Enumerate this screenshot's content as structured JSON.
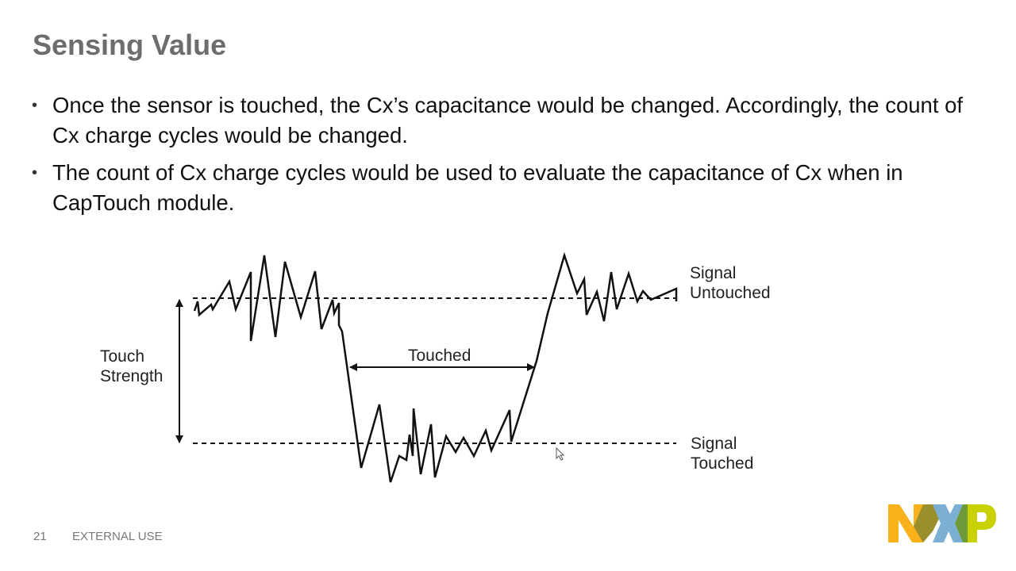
{
  "slide": {
    "title": "Sensing Value",
    "bullets": [
      "Once the sensor is touched, the Cx’s capacitance would be changed. Accordingly, the count of Cx charge cycles would be changed.",
      "The count of Cx charge cycles would be used to evaluate the capacitance of Cx when in CapTouch module."
    ]
  },
  "diagram": {
    "touch_strength_label": [
      "Touch",
      "Strength"
    ],
    "touched_label": "Touched",
    "signal_untouched_label": [
      "Signal",
      "Untouched"
    ],
    "signal_touched_label": [
      "Signal",
      "Touched"
    ]
  },
  "footer": {
    "page_number": "21",
    "classification": "EXTERNAL USE",
    "logo_text": "NXP"
  },
  "colors": {
    "title": "#6d6d6d",
    "logo_orange": "#f9b21b",
    "logo_blue": "#7bafd4",
    "logo_green": "#c9d200"
  }
}
